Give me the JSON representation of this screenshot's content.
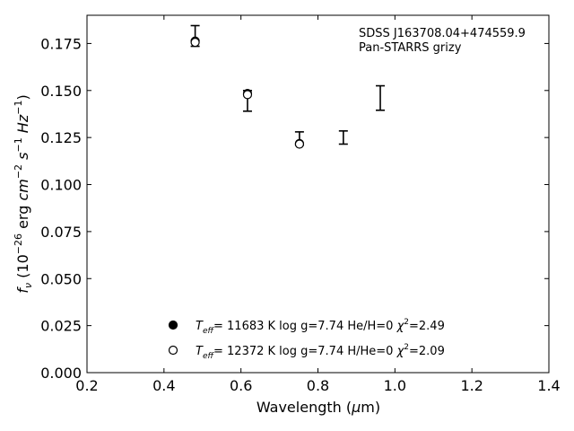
{
  "chart_data": {
    "type": "scatter",
    "annotation_lines": [
      "SDSS J163708.04+474559.9",
      "Pan-STARRS grizy"
    ],
    "xlabel": "Wavelength (μm)",
    "ylabel": "f_ν (10^-26 erg cm^-2 s^-1 Hz^-1)",
    "xlim": [
      0.2,
      1.4
    ],
    "ylim": [
      0.0,
      0.19
    ],
    "x_ticks": [
      0.2,
      0.4,
      0.6,
      0.8,
      1.0,
      1.2,
      1.4
    ],
    "x_tick_labels": [
      "0.2",
      "0.4",
      "0.6",
      "0.8",
      "1.0",
      "1.2",
      "1.4"
    ],
    "y_ticks": [
      0.0,
      0.025,
      0.05,
      0.075,
      0.1,
      0.125,
      0.15,
      0.175
    ],
    "y_tick_labels": [
      "0.000",
      "0.025",
      "0.050",
      "0.075",
      "0.100",
      "0.125",
      "0.150",
      "0.175"
    ],
    "grid": false,
    "legend_position": "bottom-center",
    "observed": {
      "x": [
        0.481,
        0.617,
        0.752,
        0.866,
        0.962
      ],
      "y": [
        0.179,
        0.1445,
        0.1245,
        0.125,
        0.146
      ],
      "y_err": [
        0.0055,
        0.0055,
        0.0035,
        0.0035,
        0.0065
      ]
    },
    "series": [
      {
        "name": "T_eff= 11683 K  log g=7.74  He/H=0  χ²=2.49",
        "legend": {
          "teff": "11683 K",
          "logg": "log g=7.74",
          "comp": "He/H=0",
          "chi2": "2.49"
        },
        "marker": "filled",
        "x": [
          0.481,
          0.617,
          0.752
        ],
        "y": [
          0.1763,
          0.1484,
          0.1218
        ]
      },
      {
        "name": "T_eff= 12372 K  log g=7.74  H/He=0  χ²=2.09",
        "legend": {
          "teff": "12372 K",
          "logg": "log g=7.74",
          "comp": "H/He=0",
          "chi2": "2.09"
        },
        "marker": "open",
        "x": [
          0.481,
          0.617,
          0.752
        ],
        "y": [
          0.1756,
          0.1478,
          0.1215
        ]
      }
    ]
  }
}
